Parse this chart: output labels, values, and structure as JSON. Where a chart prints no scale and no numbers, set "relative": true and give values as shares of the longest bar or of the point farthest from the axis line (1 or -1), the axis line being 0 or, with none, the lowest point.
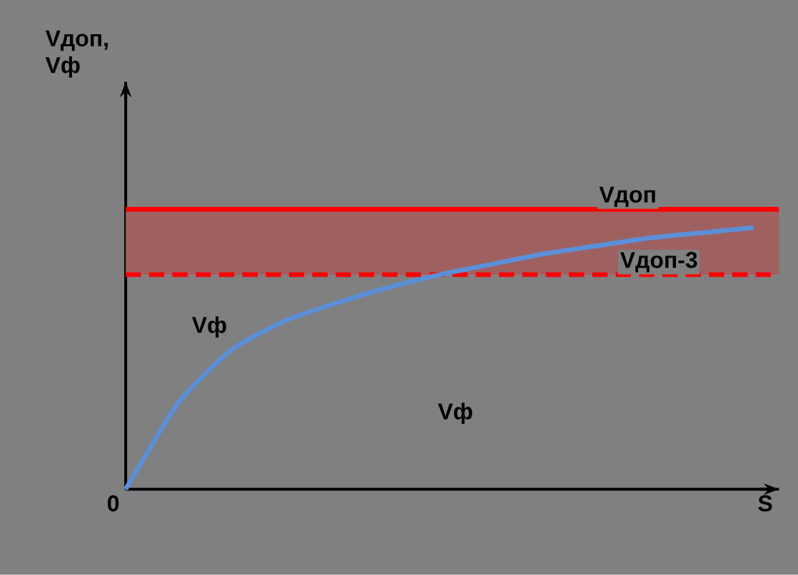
{
  "chart_data": {
    "type": "line",
    "relative": true,
    "categories": [
      null,
      null,
      null,
      null,
      null,
      null,
      null,
      null,
      null,
      null,
      null,
      null,
      null
    ],
    "series": [
      {
        "name": "Vф",
        "color": "#5b8fd8",
        "values": [
          0,
          0.33,
          0.53,
          0.64,
          0.71,
          0.77,
          0.82,
          0.86,
          0.9,
          0.93,
          0.96,
          0.98,
          1
        ]
      }
    ],
    "ref_lines": [
      {
        "axis": "y",
        "value": 1.07,
        "label": "Vдоп",
        "color": "#ff0000",
        "line_style": "solid"
      },
      {
        "axis": "y",
        "value": 0.82,
        "label": "Vдоп-3",
        "color": "#ff0000",
        "line_style": "dashed"
      }
    ],
    "bands": [
      {
        "axis": "y",
        "from": 0.82,
        "to": 1.07,
        "color": "#9f6060"
      }
    ],
    "annotations": [
      "Vдоп, Vф",
      "S",
      "0",
      "Vф"
    ],
    "marker": "none",
    "line_style": "solid"
  }
}
